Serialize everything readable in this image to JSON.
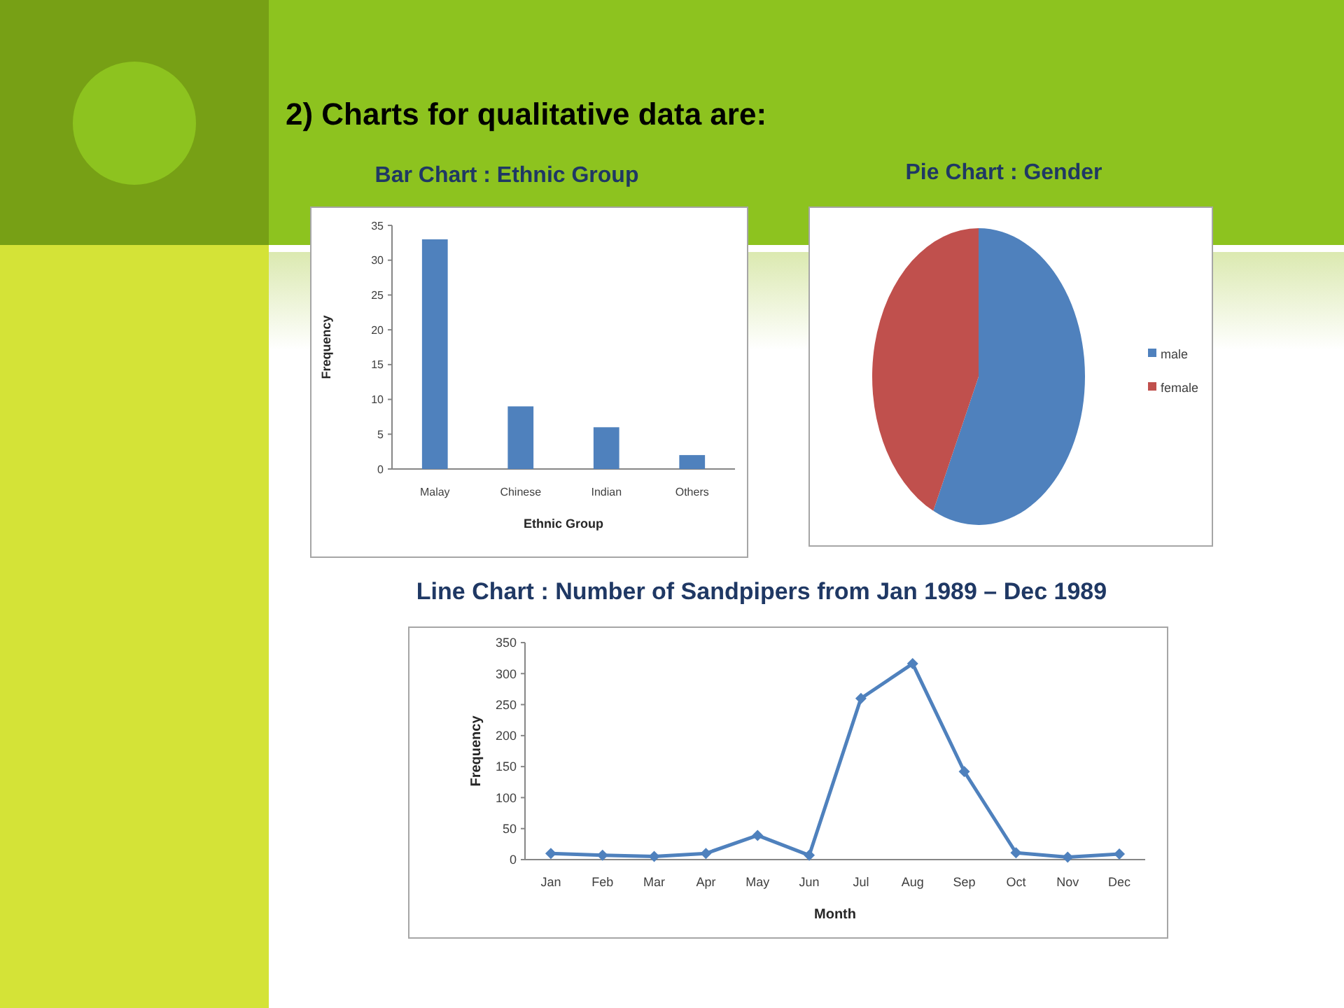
{
  "chart_data": [
    {
      "type": "bar",
      "title": "Bar Chart : Ethnic Group",
      "xlabel": "Ethnic Group",
      "ylabel": "Frequency",
      "categories": [
        "Malay",
        "Chinese",
        "Indian",
        "Others"
      ],
      "values": [
        33,
        9,
        6,
        2
      ],
      "color": "#4f81bd",
      "ylim": [
        0,
        35
      ],
      "yticks": [
        0,
        5,
        10,
        15,
        20,
        25,
        30,
        35
      ],
      "grid": false,
      "annotations": [
        "2) Charts for qualitative data are:"
      ]
    },
    {
      "type": "pie",
      "title": "Pie Chart : Gender",
      "categories": [
        "male",
        "female"
      ],
      "values": [
        57,
        43
      ],
      "colors": [
        "#4f81bd",
        "#c0504d"
      ],
      "legend": "right"
    },
    {
      "type": "line",
      "title": "Line Chart : Number of Sandpipers from Jan 1989 – Dec 1989",
      "xlabel": "Month",
      "ylabel": "Frequency",
      "categories": [
        "Jan",
        "Feb",
        "Mar",
        "Apr",
        "May",
        "Jun",
        "Jul",
        "Aug",
        "Sep",
        "Oct",
        "Nov",
        "Dec"
      ],
      "series": [
        {
          "color": "#4f81bd",
          "values": [
            10,
            7,
            5,
            10,
            39,
            7,
            260,
            316,
            142,
            11,
            4,
            9
          ]
        }
      ],
      "ylim": [
        0,
        350
      ],
      "yticks": [
        0,
        50,
        100,
        150,
        200,
        250,
        300,
        350
      ],
      "grid": false,
      "marker": "diamond",
      "line_style": "solid"
    }
  ]
}
